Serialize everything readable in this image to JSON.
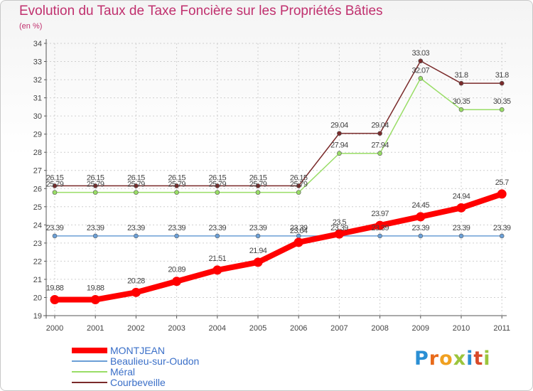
{
  "chart_data": {
    "type": "line",
    "title": "Evolution du Taux de Taxe Foncière sur les Propriétés Bâties",
    "ylabel": "(en %)",
    "xlabel": "",
    "x": [
      "2000",
      "2001",
      "2002",
      "2003",
      "2004",
      "2005",
      "2006",
      "2007",
      "2008",
      "2009",
      "2010",
      "2011"
    ],
    "ylim": [
      19,
      34
    ],
    "yticks": [
      19,
      20,
      21,
      22,
      23,
      24,
      25,
      26,
      27,
      28,
      29,
      30,
      31,
      32,
      33,
      34
    ],
    "legend_position": "bottom-left",
    "series": [
      {
        "name": "MONTJEAN",
        "color": "#ff0000",
        "values": [
          19.88,
          19.88,
          20.28,
          20.89,
          21.51,
          21.94,
          23.04,
          23.5,
          23.97,
          24.45,
          24.94,
          25.7
        ],
        "labels": [
          "19.88",
          "19.88",
          "20.28",
          "20.89",
          "21.51",
          "21.94",
          "23.04",
          "23.5",
          "23.97",
          "24.45",
          "24.94",
          "25.7"
        ]
      },
      {
        "name": "Beaulieu-sur-Oudon",
        "color": "#6b9fd6",
        "values": [
          23.39,
          23.39,
          23.39,
          23.39,
          23.39,
          23.39,
          23.39,
          23.39,
          23.39,
          23.39,
          23.39,
          23.39
        ],
        "labels": [
          "23.39",
          "23.39",
          "23.39",
          "23.39",
          "23.39",
          "23.39",
          "23.39",
          "23.39",
          "23.39",
          "23.39",
          "23.39",
          "23.39"
        ]
      },
      {
        "name": "Méral",
        "color": "#99dd66",
        "values": [
          25.79,
          25.79,
          25.79,
          25.79,
          25.79,
          25.79,
          25.79,
          27.94,
          27.94,
          32.07,
          30.35,
          30.35
        ],
        "labels": [
          "25.79",
          "25.79",
          "25.79",
          "25.79",
          "25.79",
          "25.79",
          "25.79",
          "27.94",
          "27.94",
          "32.07",
          "30.35",
          "30.35"
        ]
      },
      {
        "name": "Courbeveille",
        "color": "#7a2a2a",
        "values": [
          26.15,
          26.15,
          26.15,
          26.15,
          26.15,
          26.15,
          26.15,
          29.04,
          29.04,
          33.03,
          31.8,
          31.8
        ],
        "labels": [
          "26.15",
          "26.15",
          "26.15",
          "26.15",
          "26.15",
          "26.15",
          "26.15",
          "29.04",
          "29.04",
          "33.03",
          "31.8",
          "31.8"
        ]
      }
    ]
  },
  "legend": {
    "items": [
      "MONTJEAN",
      "Beaulieu-sur-Oudon",
      "Méral",
      "Courbeveille"
    ]
  },
  "brand": {
    "letters": [
      "P",
      "r",
      "o",
      "x",
      "i",
      "t",
      "i"
    ]
  }
}
